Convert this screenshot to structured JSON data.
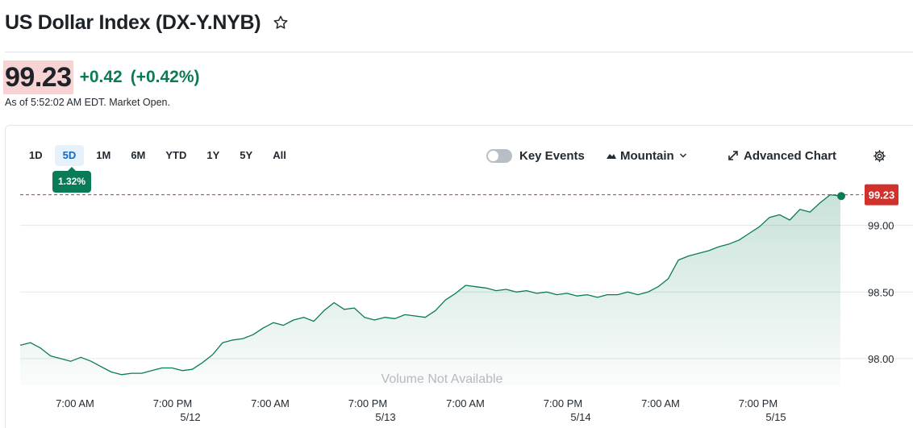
{
  "header": {
    "title": "US Dollar Index (DX-Y.NYB)",
    "star_icon": "star-outline-icon"
  },
  "quote": {
    "price": "99.23",
    "change": "+0.42",
    "change_percent": "(+0.42%)",
    "as_of": "As of 5:52:02 AM EDT. Market Open.",
    "price_highlight_color": "#f8d3d3",
    "positive_color": "#0a7b57"
  },
  "range_tabs": [
    {
      "label": "1D",
      "active": false
    },
    {
      "label": "5D",
      "active": true
    },
    {
      "label": "1M",
      "active": false
    },
    {
      "label": "6M",
      "active": false
    },
    {
      "label": "YTD",
      "active": false
    },
    {
      "label": "1Y",
      "active": false
    },
    {
      "label": "5Y",
      "active": false
    },
    {
      "label": "All",
      "active": false
    }
  ],
  "range_change_badge": "1.32%",
  "toolbar": {
    "key_events_label": "Key Events",
    "key_events_on": false,
    "chart_type_label": "Mountain",
    "chart_type_icon": "mountain-icon",
    "advanced_chart_label": "Advanced Chart",
    "advanced_chart_icon": "expand-icon",
    "settings_icon": "gear-icon"
  },
  "chart_data": {
    "type": "area",
    "title": "",
    "xlabel": "",
    "ylabel": "",
    "ylim": [
      97.8,
      99.3
    ],
    "y_ticks": [
      "98.00",
      "98.50",
      "99.00"
    ],
    "x_ticks": [
      {
        "time": "7:00 AM",
        "date": ""
      },
      {
        "time": "7:00 PM",
        "date": "5/12"
      },
      {
        "time": "7:00 AM",
        "date": ""
      },
      {
        "time": "7:00 PM",
        "date": "5/13"
      },
      {
        "time": "7:00 AM",
        "date": ""
      },
      {
        "time": "7:00 PM",
        "date": "5/14"
      },
      {
        "time": "7:00 AM",
        "date": ""
      },
      {
        "time": "7:00 PM",
        "date": "5/15"
      }
    ],
    "current_value": 99.23,
    "current_value_label": "99.23",
    "volume_note": "Volume Not Available",
    "line_color": "#0a7b57",
    "area_color": "#0a7b57",
    "reference_line_color": "#d0312d",
    "series": [
      {
        "values": [
          98.1,
          98.12,
          98.08,
          98.02,
          98.0,
          97.98,
          98.01,
          97.98,
          97.94,
          97.9,
          97.88,
          97.89,
          97.89,
          97.91,
          97.93,
          97.93,
          97.91,
          97.92,
          97.97,
          98.03,
          98.12,
          98.14,
          98.15,
          98.18,
          98.23,
          98.27,
          98.25,
          98.29,
          98.31,
          98.28,
          98.36,
          98.42,
          98.37,
          98.38,
          98.31,
          98.29,
          98.31,
          98.3,
          98.33,
          98.32,
          98.31,
          98.36,
          98.44,
          98.49,
          98.55,
          98.54,
          98.53,
          98.51,
          98.52,
          98.5,
          98.51,
          98.49,
          98.5,
          98.48,
          98.49,
          98.47,
          98.48,
          98.46,
          98.48,
          98.48,
          98.5,
          98.48,
          98.5,
          98.54,
          98.6,
          98.74,
          98.77,
          98.79,
          98.81,
          98.84,
          98.86,
          98.89,
          98.94,
          98.99,
          99.06,
          99.08,
          99.04,
          99.12,
          99.1,
          99.17,
          99.23,
          99.22
        ]
      }
    ]
  }
}
